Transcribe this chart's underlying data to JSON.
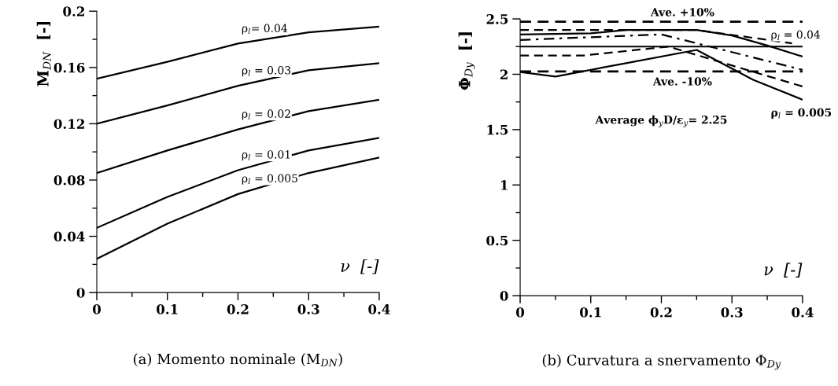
{
  "chart_data": [
    {
      "type": "line",
      "title": "(a) Momento nominale (M$_{DN}$)",
      "xlabel": "ν  [-]",
      "ylabel": "M$_{DN}$  [-]",
      "x": [
        0,
        0.1,
        0.2,
        0.3,
        0.4
      ],
      "xlim": [
        0,
        0.4
      ],
      "xticks": [
        0,
        0.1,
        0.2,
        0.3,
        0.4
      ],
      "ylim": [
        0,
        0.2
      ],
      "yticks": [
        0,
        0.04,
        0.08,
        0.12,
        0.16,
        0.2
      ],
      "grid": false,
      "legend": false,
      "line_style": "solid",
      "series": [
        {
          "name": "ρ$_{l}$= 0.04",
          "color": "#000000",
          "values": [
            0.152,
            0.164,
            0.177,
            0.185,
            0.189
          ]
        },
        {
          "name": "ρ$_{l}$ = 0.03",
          "color": "#000000",
          "values": [
            0.12,
            0.133,
            0.147,
            0.158,
            0.163
          ]
        },
        {
          "name": "ρ$_{l}$ = 0.02",
          "color": "#000000",
          "values": [
            0.085,
            0.101,
            0.116,
            0.129,
            0.137
          ]
        },
        {
          "name": "ρ$_{l}$ = 0.01",
          "color": "#000000",
          "values": [
            0.046,
            0.068,
            0.087,
            0.101,
            0.11
          ]
        },
        {
          "name": "ρ$_{l}$ = 0.005",
          "color": "#000000",
          "values": [
            0.024,
            0.049,
            0.07,
            0.085,
            0.096
          ]
        }
      ]
    },
    {
      "type": "line",
      "title": "(b) Curvatura a snervamento Φ$_{Dy}$",
      "xlabel": "ν  [-]",
      "ylabel": "Φ$_{Dy}$  [-]",
      "xlim": [
        0,
        0.4
      ],
      "xticks": [
        0,
        0.1,
        0.2,
        0.3,
        0.4
      ],
      "ylim": [
        0,
        2.5
      ],
      "yticks": [
        0,
        0.5,
        1,
        1.5,
        2,
        2.5
      ],
      "grid": false,
      "legend": false,
      "series": [
        {
          "name": "ρ$_{l}$ = 0.04",
          "color": "#000000",
          "line_style": "solid",
          "x": [
            0,
            0.1,
            0.15,
            0.25,
            0.3,
            0.35,
            0.4
          ],
          "values": [
            2.36,
            2.37,
            2.4,
            2.4,
            2.35,
            2.26,
            2.16
          ]
        },
        {
          "color": "#000000",
          "line_style": "dashed",
          "x": [
            0,
            0.25,
            0.385
          ],
          "values": [
            2.4,
            2.4,
            2.28
          ]
        },
        {
          "color": "#000000",
          "line_style": "dashdot",
          "x": [
            0,
            0.2,
            0.4
          ],
          "values": [
            2.31,
            2.36,
            2.04
          ]
        },
        {
          "color": "#000000",
          "line_style": "dashed",
          "x": [
            0,
            0.09,
            0.21,
            0.4
          ],
          "values": [
            2.17,
            2.17,
            2.25,
            1.89
          ]
        },
        {
          "name": "ρ$_{l}$ = 0.005",
          "color": "#000000",
          "line_style": "solid",
          "x": [
            0,
            0.05,
            0.15,
            0.25,
            0.33,
            0.4
          ],
          "values": [
            2.02,
            1.98,
            2.1,
            2.22,
            1.95,
            1.77
          ]
        }
      ],
      "ref_lines": [
        {
          "axis": "y",
          "value": 2.475,
          "label": "Ave. +10%",
          "line_style": "dashed",
          "color": "#000000"
        },
        {
          "axis": "y",
          "value": 2.25,
          "label": null,
          "line_style": "solid",
          "color": "#000000"
        },
        {
          "axis": "y",
          "value": 2.025,
          "label": "Ave. -10%",
          "line_style": "dashed",
          "color": "#000000"
        }
      ],
      "annotations": [
        "Average ϕ$_{y}$D/ε$_{y}$= 2.25"
      ]
    }
  ]
}
